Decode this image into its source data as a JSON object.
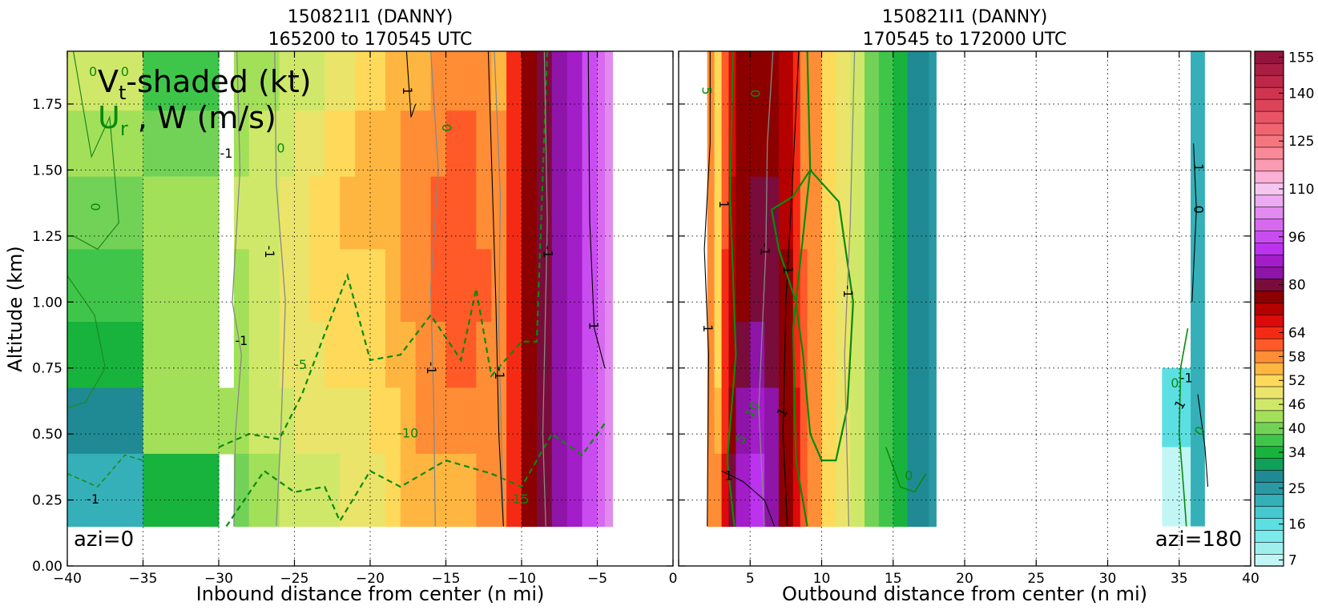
{
  "chart_data": [
    {
      "type": "heatmap",
      "title": [
        "150821I1 (DANNY)",
        "165200 to 170545 UTC"
      ],
      "xlabel": "Inbound distance from center (n mi)",
      "ylabel": "Altitude (km)",
      "xlim": [
        -40,
        0
      ],
      "ylim": [
        0,
        1.95
      ],
      "xticks": [
        -40,
        -35,
        -30,
        -25,
        -20,
        -15,
        -10,
        -5,
        0
      ],
      "xtick_labels": [
        "−40",
        "−35",
        "−30",
        "−25",
        "−20",
        "−15",
        "−10",
        "−5",
        "0"
      ],
      "yticks": [
        0,
        0.25,
        0.5,
        0.75,
        1.0,
        1.25,
        1.5,
        1.75
      ],
      "ytick_labels": [
        "0.00",
        "0.25",
        "0.50",
        "0.75",
        "1.00",
        "1.25",
        "1.50",
        "1.75"
      ],
      "grid": true,
      "legend_lines": {
        "line1": {
          "base": "V",
          "sub": "t",
          "rest": "-shaded (kt)"
        },
        "line2": {
          "base": "U",
          "sub": "r",
          "rest": " , W (m/s)"
        }
      },
      "annotation": "azi=0",
      "x_columns": [
        -40,
        -35,
        -30,
        -29,
        -28,
        -27,
        -26,
        -25,
        -24,
        -23,
        -22,
        -21,
        -20,
        -19,
        -18,
        -17,
        -16,
        -15,
        -14,
        -13,
        -12,
        -11,
        -10,
        -9,
        -8,
        -7,
        -6,
        -5,
        -4.5
      ],
      "vt_shading_kt": [
        [
          46,
          38,
          null,
          45,
          45,
          45,
          47,
          47,
          48,
          50,
          51,
          52,
          54,
          55,
          56,
          57,
          58,
          59,
          60,
          58,
          57,
          64,
          76,
          80,
          84,
          90,
          96,
          100,
          104
        ],
        [
          44,
          42,
          null,
          45,
          46,
          47,
          48,
          49,
          51,
          53,
          54,
          55,
          56,
          57,
          58,
          59,
          60,
          62,
          62,
          60,
          59,
          64,
          76,
          80,
          84,
          90,
          96,
          100,
          104
        ],
        [
          42,
          44,
          null,
          46,
          47,
          48,
          49,
          51,
          52,
          54,
          55,
          55,
          56,
          57,
          58,
          59,
          61,
          62,
          62,
          60,
          60,
          64,
          76,
          80,
          84,
          90,
          96,
          100,
          104
        ],
        [
          38,
          43,
          null,
          45,
          47,
          48,
          49,
          51,
          52,
          54,
          53,
          53,
          54,
          56,
          58,
          59,
          62,
          63,
          63,
          61,
          60,
          64,
          76,
          80,
          84,
          90,
          96,
          100,
          104
        ],
        [
          34,
          44,
          null,
          45,
          46,
          47,
          49,
          50,
          51,
          52,
          52,
          52,
          53,
          55,
          57,
          58,
          60,
          61,
          61,
          60,
          60,
          64,
          76,
          80,
          84,
          90,
          96,
          100,
          104
        ],
        [
          30,
          44,
          44,
          44,
          46,
          47,
          48,
          49,
          50,
          50,
          51,
          51,
          53,
          54,
          56,
          58,
          58,
          58,
          58,
          58,
          60,
          64,
          76,
          80,
          84,
          90,
          96,
          100,
          104
        ],
        [
          22,
          34,
          null,
          42,
          43,
          44,
          46,
          47,
          47,
          48,
          49,
          50,
          51,
          53,
          55,
          56,
          57,
          57,
          57,
          58,
          60,
          64,
          76,
          80,
          84,
          90,
          96,
          100,
          104
        ]
      ],
      "row_altitudes_km": [
        1.85,
        1.6,
        1.35,
        1.05,
        0.8,
        0.55,
        0.3
      ],
      "contour_labels": [
        {
          "text": "0",
          "x": -38.3,
          "y": 1.87,
          "color": "green"
        },
        {
          "text": "0",
          "x": -36.2,
          "y": 1.87,
          "color": "green"
        },
        {
          "text": "0",
          "x": -38.2,
          "y": 1.36,
          "color": "green",
          "rot": 90
        },
        {
          "text": "-1",
          "x": -29.5,
          "y": 1.56,
          "color": "black"
        },
        {
          "text": "-1",
          "x": -26.7,
          "y": 1.19,
          "color": "black",
          "rot": 90
        },
        {
          "text": "0",
          "x": -25.9,
          "y": 1.58,
          "color": "green"
        },
        {
          "text": "-1",
          "x": -28.5,
          "y": 0.85,
          "color": "black"
        },
        {
          "text": "1",
          "x": -17.6,
          "y": 1.8,
          "color": "black",
          "rot": 90
        },
        {
          "text": "0",
          "x": -15,
          "y": 1.66,
          "color": "green",
          "rot": 90
        },
        {
          "text": "-1",
          "x": -16,
          "y": 0.75,
          "color": "black",
          "rot": 90
        },
        {
          "text": "-5",
          "x": -24.6,
          "y": 0.76,
          "color": "green"
        },
        {
          "text": "-10",
          "x": -17.5,
          "y": 0.5,
          "color": "green"
        },
        {
          "text": "-1",
          "x": -11.5,
          "y": 0.73,
          "color": "black",
          "rot": 90
        },
        {
          "text": "-1",
          "x": -8.3,
          "y": 1.19,
          "color": "black",
          "rot": 90
        },
        {
          "text": "1",
          "x": -5.3,
          "y": 0.91,
          "color": "black",
          "rot": 90
        },
        {
          "text": "-15",
          "x": -10.2,
          "y": 0.25,
          "color": "green"
        },
        {
          "text": "-1",
          "x": -38.3,
          "y": 0.25,
          "color": "black"
        }
      ]
    },
    {
      "type": "heatmap",
      "title": [
        "150821I1 (DANNY)",
        "170545 to 172000 UTC"
      ],
      "xlabel": "Outbound distance from center (n mi)",
      "ylabel": "",
      "xlim": [
        0,
        40
      ],
      "ylim": [
        0,
        1.95
      ],
      "xticks": [
        0,
        5,
        10,
        15,
        20,
        25,
        30,
        35,
        40
      ],
      "xtick_labels": [
        "",
        "5",
        "10",
        "15",
        "20",
        "25",
        "30",
        "35",
        "40"
      ],
      "yticks": [
        0,
        0.25,
        0.5,
        0.75,
        1.0,
        1.25,
        1.5,
        1.75
      ],
      "grid": true,
      "annotation": "azi=180",
      "x_columns": [
        2,
        2.5,
        3,
        3.5,
        4,
        5,
        6,
        7,
        8,
        8.5,
        9,
        10,
        11,
        12,
        13,
        14,
        15,
        16,
        17.5
      ],
      "vt_shading_kt": [
        [
          58,
          52,
          62,
          70,
          76,
          78,
          78,
          74,
          64,
          60,
          58,
          54,
          50,
          46,
          42,
          38,
          34,
          28,
          25
        ],
        [
          58,
          52,
          62,
          70,
          76,
          78,
          78,
          74,
          66,
          60,
          58,
          54,
          50,
          46,
          42,
          38,
          34,
          28,
          25
        ],
        [
          58,
          52,
          62,
          72,
          76,
          80,
          80,
          74,
          66,
          60,
          58,
          54,
          50,
          46,
          42,
          38,
          34,
          28,
          25
        ],
        [
          58,
          54,
          64,
          72,
          78,
          80,
          80,
          76,
          66,
          62,
          58,
          54,
          50,
          46,
          42,
          38,
          34,
          28,
          25
        ],
        [
          58,
          54,
          64,
          74,
          80,
          84,
          82,
          76,
          66,
          62,
          58,
          54,
          50,
          46,
          42,
          38,
          34,
          28,
          25
        ],
        [
          58,
          56,
          66,
          76,
          84,
          88,
          84,
          78,
          68,
          62,
          58,
          54,
          50,
          46,
          42,
          38,
          34,
          28,
          25
        ],
        [
          58,
          58,
          70,
          80,
          90,
          92,
          86,
          78,
          68,
          62,
          58,
          54,
          50,
          46,
          42,
          38,
          34,
          28,
          25
        ]
      ],
      "row_altitudes_km": [
        1.85,
        1.6,
        1.35,
        1.05,
        0.8,
        0.55,
        0.3
      ],
      "outer_strip": {
        "x": [
          35.8,
          36.8
        ],
        "y": [
          0.15,
          1.95
        ],
        "vt_kt": 22
      },
      "outer_block": {
        "x": [
          33.8,
          35.8
        ],
        "y": [
          0.15,
          0.75
        ],
        "vt_kt": [
          7,
          16
        ]
      },
      "contour_labels": [
        {
          "text": "5",
          "x": 1.9,
          "y": 1.8,
          "color": "green",
          "rot": 90
        },
        {
          "text": "0",
          "x": 5.3,
          "y": 1.79,
          "color": "green",
          "rot": 90
        },
        {
          "text": "1",
          "x": 3.1,
          "y": 1.37,
          "color": "black",
          "rot": 90
        },
        {
          "text": "-1",
          "x": 6,
          "y": 1.2,
          "color": "black",
          "rot": 90
        },
        {
          "text": "-1",
          "x": 7.6,
          "y": 1.13,
          "color": "black",
          "rot": 90
        },
        {
          "text": "1",
          "x": 2,
          "y": 0.9,
          "color": "black",
          "rot": 90
        },
        {
          "text": "-1",
          "x": 11.8,
          "y": 1.04,
          "color": "black",
          "rot": 90
        },
        {
          "text": "10",
          "x": 5.2,
          "y": 0.59,
          "color": "green",
          "rot": -60
        },
        {
          "text": "1",
          "x": 7.3,
          "y": 0.58,
          "color": "black",
          "rot": -60
        },
        {
          "text": "5",
          "x": 4.4,
          "y": 0.48,
          "color": "green",
          "rot": -60
        },
        {
          "text": "1",
          "x": 3.5,
          "y": 0.34,
          "color": "black"
        },
        {
          "text": "0",
          "x": 16.1,
          "y": 0.34,
          "color": "green"
        },
        {
          "text": "1",
          "x": 36.3,
          "y": 1.51,
          "color": "black",
          "rot": 90
        },
        {
          "text": "0",
          "x": 36.3,
          "y": 1.35,
          "color": "black",
          "rot": 90
        },
        {
          "text": "-1",
          "x": 35.5,
          "y": 0.71,
          "color": "black"
        },
        {
          "text": "0",
          "x": 34.7,
          "y": 0.69,
          "color": "green"
        },
        {
          "text": "1",
          "x": 35.1,
          "y": 0.61,
          "color": "black",
          "rot": -60
        },
        {
          "text": "0",
          "x": 36.5,
          "y": 0.51,
          "color": "green",
          "rot": -60
        }
      ]
    }
  ],
  "colorbar": {
    "levels": [
      7,
      10,
      13,
      16,
      19,
      22,
      25,
      28,
      31,
      34,
      37,
      40,
      43,
      46,
      49,
      52,
      55,
      58,
      61,
      64,
      68,
      72,
      76,
      80,
      84,
      88,
      92,
      96,
      100,
      104,
      108,
      110,
      114,
      118,
      122,
      125,
      129,
      133,
      137,
      140,
      145,
      150,
      155,
      160
    ],
    "colors": [
      "#c2f6f4",
      "#9ef0ef",
      "#7ce9ea",
      "#5cdfe3",
      "#45c8cf",
      "#35b0b8",
      "#2a99a4",
      "#1f8a93",
      "#11a05a",
      "#18b33c",
      "#3fc64a",
      "#72d257",
      "#a3e05a",
      "#cfe86a",
      "#ebe46a",
      "#ffd95a",
      "#ffb640",
      "#ff8d35",
      "#ff5a28",
      "#f52a14",
      "#dc0a0a",
      "#b50000",
      "#8c0000",
      "#7a0c3c",
      "#8f14a8",
      "#a31dc8",
      "#bb33ee",
      "#c94cf0",
      "#d769ef",
      "#e28af0",
      "#ecaaf0",
      "#f6c6f0",
      "#fbb0d6",
      "#fb9ab0",
      "#fa8898",
      "#f67680",
      "#f06470",
      "#e85464",
      "#dd4358",
      "#cf3450",
      "#bd2848",
      "#a91e42",
      "#94143d"
    ],
    "tick_values": [
      7,
      16,
      25,
      34,
      40,
      46,
      52,
      58,
      64,
      80,
      96,
      110,
      125,
      140,
      155
    ]
  }
}
